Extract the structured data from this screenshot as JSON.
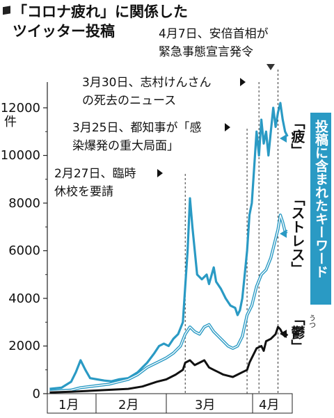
{
  "chart_data": {
    "type": "line",
    "title_line1": "「コロナ疲れ」に関係した",
    "title_line2": "ツイッター投稿",
    "yunit": "件",
    "ylim": [
      0,
      13000
    ],
    "yticks": [
      "0",
      "2000",
      "4000",
      "6000",
      "8000",
      "10000",
      "12000"
    ],
    "ytick_values": [
      0,
      2000,
      4000,
      6000,
      8000,
      10000,
      12000
    ],
    "xmonths": [
      "1月",
      "2月",
      "3月",
      "4月"
    ],
    "side_label": "投稿に含まれたキーワード",
    "ruby_utsu": "うつ",
    "annotations": [
      {
        "day": 58,
        "lines": [
          "2月27日、臨時",
          "休校を要請"
        ]
      },
      {
        "day": 84,
        "lines": [
          "3月25日、都知事が「感",
          "染爆発の重大局面」"
        ]
      },
      {
        "day": 89,
        "lines": [
          "3月30日、志村けんさん",
          "の死去のニュース"
        ]
      },
      {
        "day": 97,
        "lines": [
          "4月7日、安倍首相が",
          "緊急事態宣言発令"
        ]
      }
    ],
    "series": [
      {
        "name": "「疲」",
        "color": "#2a9ac4",
        "points": [
          [
            1,
            200
          ],
          [
            6,
            250
          ],
          [
            10,
            500
          ],
          [
            12,
            900
          ],
          [
            14,
            1400
          ],
          [
            16,
            1000
          ],
          [
            18,
            650
          ],
          [
            21,
            600
          ],
          [
            24,
            550
          ],
          [
            27,
            520
          ],
          [
            30,
            600
          ],
          [
            34,
            650
          ],
          [
            38,
            900
          ],
          [
            40,
            1100
          ],
          [
            42,
            1300
          ],
          [
            45,
            1700
          ],
          [
            47,
            2000
          ],
          [
            49,
            2100
          ],
          [
            51,
            2000
          ],
          [
            53,
            2300
          ],
          [
            55,
            2500
          ],
          [
            57,
            3000
          ],
          [
            58,
            4500
          ],
          [
            59,
            6000
          ],
          [
            60,
            8200
          ],
          [
            61,
            7000
          ],
          [
            62,
            6000
          ],
          [
            63,
            5000
          ],
          [
            65,
            4800
          ],
          [
            67,
            5000
          ],
          [
            68,
            4600
          ],
          [
            70,
            5300
          ],
          [
            71,
            4700
          ],
          [
            73,
            4400
          ],
          [
            75,
            4000
          ],
          [
            77,
            3700
          ],
          [
            79,
            3600
          ],
          [
            80,
            3300
          ],
          [
            81,
            3500
          ],
          [
            82,
            4000
          ],
          [
            83,
            5000
          ],
          [
            84,
            6000
          ],
          [
            85,
            7500
          ],
          [
            86,
            8000
          ],
          [
            87,
            9500
          ],
          [
            88,
            11000
          ],
          [
            89,
            10000
          ],
          [
            90,
            11500
          ],
          [
            91,
            10500
          ],
          [
            92,
            11000
          ],
          [
            93,
            10000
          ],
          [
            94,
            11000
          ],
          [
            95,
            12000
          ],
          [
            96,
            11200
          ],
          [
            97,
            11800
          ],
          [
            98,
            12200
          ],
          [
            99,
            11500
          ],
          [
            100,
            11000
          ],
          [
            101,
            10800
          ]
        ]
      },
      {
        "name": "「ストレス」",
        "color": "#2a9ac4",
        "points": [
          [
            1,
            100
          ],
          [
            10,
            150
          ],
          [
            14,
            250
          ],
          [
            18,
            300
          ],
          [
            22,
            350
          ],
          [
            26,
            400
          ],
          [
            30,
            500
          ],
          [
            34,
            600
          ],
          [
            38,
            800
          ],
          [
            42,
            1100
          ],
          [
            46,
            1300
          ],
          [
            50,
            1500
          ],
          [
            53,
            1700
          ],
          [
            56,
            2000
          ],
          [
            58,
            2500
          ],
          [
            60,
            2800
          ],
          [
            62,
            2600
          ],
          [
            64,
            2500
          ],
          [
            66,
            2800
          ],
          [
            68,
            2900
          ],
          [
            70,
            2600
          ],
          [
            72,
            2400
          ],
          [
            74,
            2200
          ],
          [
            76,
            2000
          ],
          [
            78,
            1900
          ],
          [
            80,
            2000
          ],
          [
            82,
            2400
          ],
          [
            84,
            3300
          ],
          [
            86,
            3700
          ],
          [
            88,
            4500
          ],
          [
            90,
            5000
          ],
          [
            92,
            5200
          ],
          [
            94,
            5700
          ],
          [
            96,
            6500
          ],
          [
            97,
            6900
          ],
          [
            98,
            7500
          ],
          [
            99,
            7200
          ],
          [
            100,
            6800
          ],
          [
            101,
            6800
          ]
        ]
      },
      {
        "name": "「鬱」",
        "color": "#111111",
        "points": [
          [
            1,
            50
          ],
          [
            10,
            80
          ],
          [
            18,
            120
          ],
          [
            26,
            160
          ],
          [
            34,
            200
          ],
          [
            40,
            300
          ],
          [
            46,
            500
          ],
          [
            50,
            600
          ],
          [
            54,
            800
          ],
          [
            57,
            1000
          ],
          [
            58,
            1300
          ],
          [
            60,
            1400
          ],
          [
            62,
            1200
          ],
          [
            64,
            1300
          ],
          [
            66,
            1400
          ],
          [
            68,
            1100
          ],
          [
            70,
            1000
          ],
          [
            72,
            900
          ],
          [
            74,
            800
          ],
          [
            76,
            750
          ],
          [
            78,
            700
          ],
          [
            80,
            800
          ],
          [
            82,
            900
          ],
          [
            84,
            1000
          ],
          [
            85,
            1300
          ],
          [
            86,
            1500
          ],
          [
            88,
            1900
          ],
          [
            90,
            2000
          ],
          [
            91,
            1800
          ],
          [
            92,
            2200
          ],
          [
            94,
            2300
          ],
          [
            96,
            2500
          ],
          [
            97,
            2800
          ],
          [
            98,
            2700
          ],
          [
            99,
            2500
          ],
          [
            100,
            2400
          ],
          [
            101,
            2500
          ]
        ]
      }
    ]
  }
}
